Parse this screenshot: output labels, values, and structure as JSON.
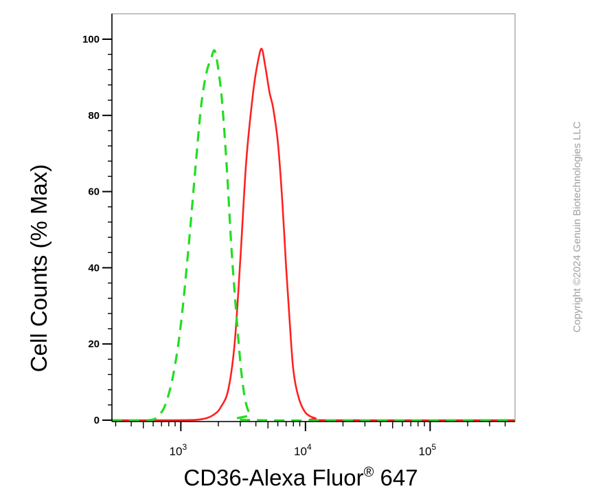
{
  "chart_data": {
    "type": "line",
    "xlabel_main": "CD36-Alexa Fluor",
    "xlabel_sup": "®",
    "xlabel_tail": " 647",
    "ylabel": "Cell Counts (% Max)",
    "x_scale": "log",
    "xlim": [
      280,
      480000
    ],
    "ylim": [
      0,
      100
    ],
    "y_ticks": [
      0,
      20,
      40,
      60,
      80,
      100
    ],
    "y_tick_labels": [
      "0",
      "20",
      "40",
      "60",
      "80",
      "100"
    ],
    "x_ticks": [
      {
        "value": 1000,
        "base": "10",
        "exp": "3"
      },
      {
        "value": 10000,
        "base": "10",
        "exp": "4"
      },
      {
        "value": 100000,
        "base": "10",
        "exp": "5"
      }
    ],
    "grid": false,
    "series": [
      {
        "color": "#ff2020",
        "style": "solid",
        "points": [
          [
            280,
            0
          ],
          [
            1000,
            0
          ],
          [
            1500,
            0.3
          ],
          [
            1850,
            1.5
          ],
          [
            2100,
            3.5
          ],
          [
            2400,
            8
          ],
          [
            2700,
            20
          ],
          [
            3000,
            42
          ],
          [
            3350,
            68
          ],
          [
            3800,
            86
          ],
          [
            4150,
            94
          ],
          [
            4450,
            97.5
          ],
          [
            4750,
            93
          ],
          [
            5150,
            86
          ],
          [
            5500,
            82
          ],
          [
            6000,
            73
          ],
          [
            6500,
            58
          ],
          [
            7000,
            40
          ],
          [
            7500,
            25
          ],
          [
            8000,
            13
          ],
          [
            8800,
            6
          ],
          [
            10000,
            2
          ],
          [
            12000,
            0.5
          ],
          [
            15000,
            0
          ],
          [
            480000,
            0
          ]
        ]
      },
      {
        "color": "#22dd22",
        "style": "dashed",
        "points": [
          [
            280,
            0
          ],
          [
            550,
            0
          ],
          [
            650,
            1
          ],
          [
            750,
            4
          ],
          [
            870,
            12
          ],
          [
            1000,
            25
          ],
          [
            1150,
            45
          ],
          [
            1300,
            65
          ],
          [
            1450,
            82
          ],
          [
            1600,
            91
          ],
          [
            1750,
            95
          ],
          [
            1870,
            97
          ],
          [
            2000,
            92
          ],
          [
            2150,
            83
          ],
          [
            2350,
            65
          ],
          [
            2550,
            45
          ],
          [
            2800,
            27
          ],
          [
            3050,
            13
          ],
          [
            3300,
            5
          ],
          [
            3600,
            1.5
          ],
          [
            4000,
            0
          ],
          [
            480000,
            0
          ]
        ]
      }
    ]
  },
  "watermark": "Copyright ©2024 Genuin Biotechnologies LLC"
}
